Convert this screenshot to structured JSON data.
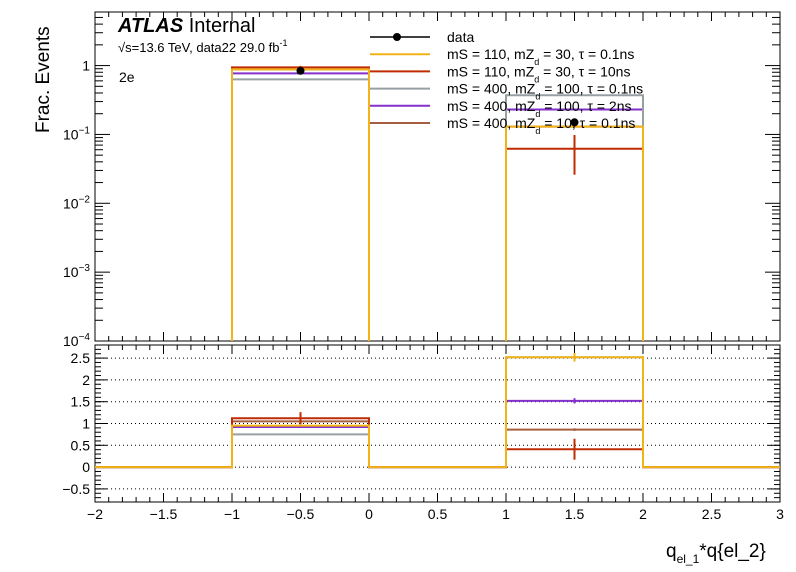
{
  "chart_data": [
    {
      "type": "histogram",
      "panel": "main",
      "atlas_label": "ATLAS",
      "atlas_status": "Internal",
      "energy_label": "√s=13.6 TeV, data22 29.0 fb",
      "energy_sup": "-1",
      "channel": "2e",
      "ylabel": "Frac. Events",
      "yscale": "log",
      "ylim": [
        0.0001,
        6
      ],
      "xlim": [
        -2,
        3
      ],
      "y_ticks": [
        {
          "v": 1,
          "base": "1",
          "exp": ""
        },
        {
          "v": 0.1,
          "base": "10",
          "exp": "−1"
        },
        {
          "v": 0.01,
          "base": "10",
          "exp": "−2"
        },
        {
          "v": 0.001,
          "base": "10",
          "exp": "−3"
        },
        {
          "v": 0.0001,
          "base": "10",
          "exp": "−4"
        }
      ],
      "legend_position": "top-right",
      "bins": [
        [
          -1,
          0
        ],
        [
          1,
          2
        ]
      ],
      "data": {
        "name": "data",
        "x": [
          -0.5,
          1.5
        ],
        "y": [
          0.84,
          0.15
        ],
        "yerr": [
          0.1,
          0.02
        ],
        "color": "#000000"
      },
      "series": [
        {
          "name": "mS = 110, mZ",
          "sub": "d",
          "rest": " = 30, τ = 0.1ns",
          "color": "#f2b318",
          "values": [
            0.88,
            0.13
          ]
        },
        {
          "name": "mS = 110, mZ",
          "sub": "d",
          "rest": " = 30, τ = 10ns",
          "color": "#bf2b02",
          "values": [
            0.94,
            0.062
          ],
          "yerr": [
            0.05,
            0.036
          ]
        },
        {
          "name": "mS = 400, mZ",
          "sub": "d",
          "rest": " = 100, τ = 0.1ns",
          "color": "#96a0a3",
          "values": [
            0.63,
            0.37
          ]
        },
        {
          "name": "mS = 400, mZ",
          "sub": "d",
          "rest": " = 100, τ = 2ns",
          "color": "#8430cc",
          "values": [
            0.77,
            0.23
          ]
        },
        {
          "name": "mS = 400, mZ",
          "sub": "d",
          "rest": " = 10, τ = 0.1ns",
          "color": "#a65e40",
          "values": [
            0.88,
            0.13
          ]
        }
      ]
    },
    {
      "type": "histogram",
      "panel": "ratio",
      "xlabel_main": "q",
      "xlabel_sub": "el_1",
      "xlabel_rest": "*q{el_2}",
      "ylim": [
        -0.8,
        2.8
      ],
      "y_ticks": [
        -0.5,
        0,
        0.5,
        1,
        1.5,
        2,
        2.5
      ],
      "y_tick_labels": [
        "−0.5",
        "0",
        "0.5",
        "1",
        "1.5",
        "2",
        "2.5"
      ],
      "x_ticks": [
        -2,
        -1.5,
        -1,
        -0.5,
        0,
        0.5,
        1,
        1.5,
        2,
        2.5,
        3
      ],
      "x_tick_labels": [
        "−2",
        "−1.5",
        "−1",
        "−0.5",
        "0",
        "0.5",
        "1",
        "1.5",
        "2",
        "2.5",
        "3"
      ],
      "grid": "horizontal dotted at major ticks",
      "bins": [
        [
          -1,
          0
        ],
        [
          1,
          2
        ]
      ],
      "series": [
        {
          "name": "mS = 110, mZd = 30, τ = 0.1ns",
          "color": "#f2b318",
          "values": [
            0.95,
            2.52
          ],
          "yerr": [
            0,
            0.1
          ]
        },
        {
          "name": "mS = 110, mZd = 30, τ = 10ns",
          "color": "#bf2b02",
          "values": [
            1.12,
            0.41
          ],
          "yerr": [
            0.14,
            0.24
          ]
        },
        {
          "name": "mS = 400, mZd = 100, τ = 0.1ns",
          "color": "#96a0a3",
          "values": [
            0.75,
            2.52
          ],
          "yerr": [
            0,
            0
          ]
        },
        {
          "name": "mS = 400, mZd = 100, τ = 2ns",
          "color": "#8430cc",
          "values": [
            0.92,
            1.52
          ],
          "yerr": [
            0,
            0.06
          ]
        },
        {
          "name": "mS = 400, mZd = 10, τ = 0.1ns",
          "color": "#a65e40",
          "values": [
            1.05,
            0.86
          ],
          "yerr": [
            0,
            0.03
          ]
        }
      ]
    }
  ]
}
